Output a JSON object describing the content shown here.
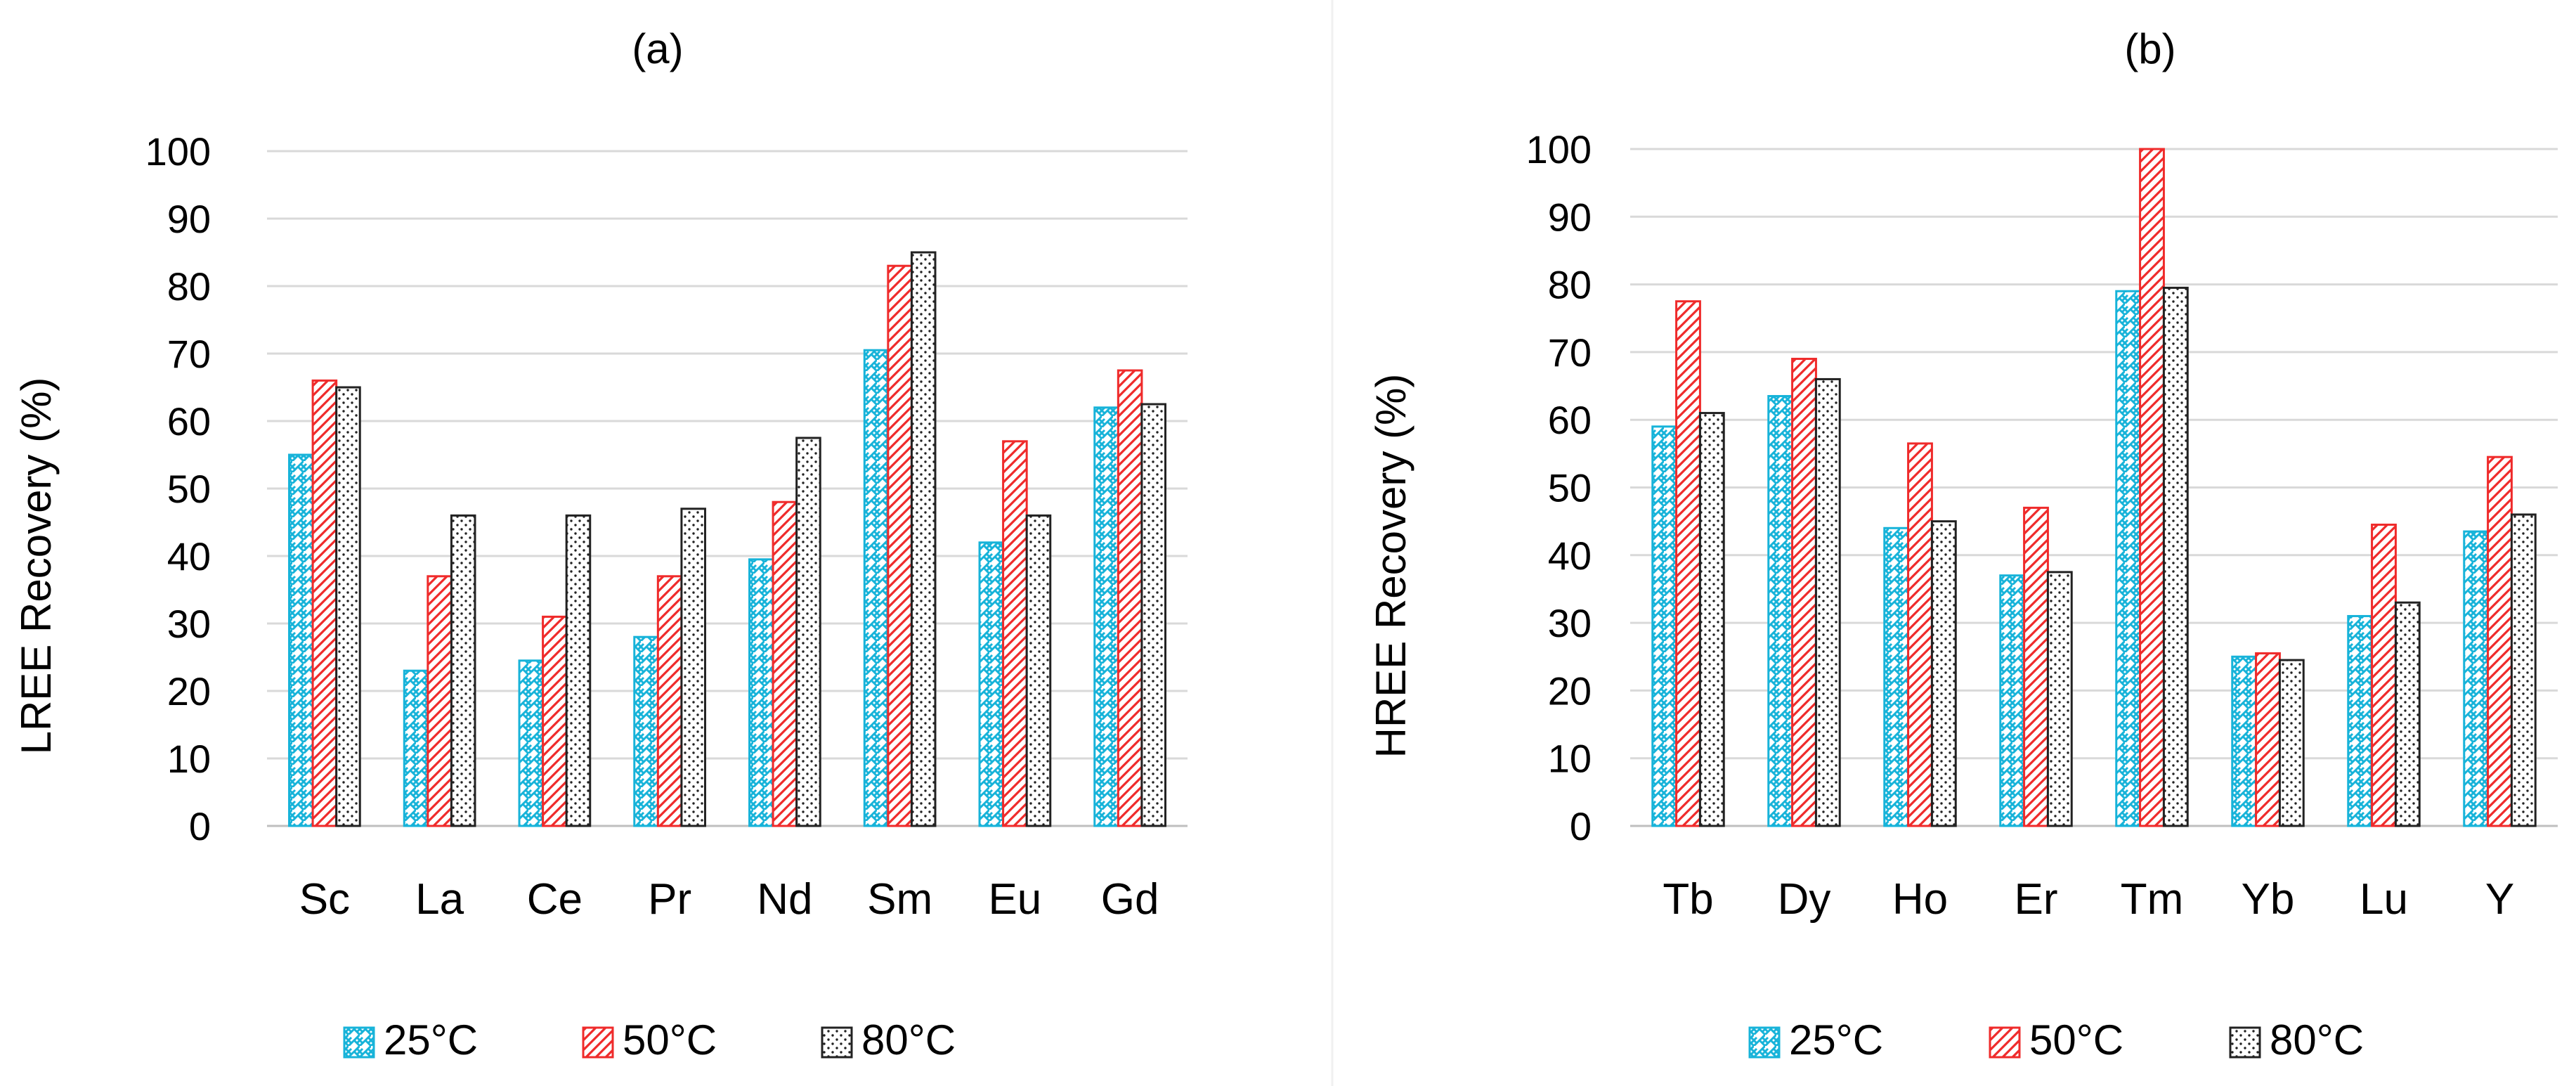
{
  "colors": {
    "series_25": "#17b3d9",
    "series_50": "#ef2b2b",
    "series_80": "#222222",
    "grid": "#d9d9d9",
    "axis": "#bfbfbf",
    "divider": "#f0f0f0"
  },
  "chart_data": [
    {
      "type": "bar",
      "title": "(a)",
      "xlabel": "",
      "ylabel": "LREE Recovery (%)",
      "ylim": [
        0,
        100
      ],
      "yticks": [
        "0",
        "10",
        "20",
        "30",
        "40",
        "50",
        "60",
        "70",
        "80",
        "90",
        "100"
      ],
      "grid": true,
      "legend_position": "bottom",
      "categories": [
        "Sc",
        "La",
        "Ce",
        "Pr",
        "Nd",
        "Sm",
        "Eu",
        "Gd"
      ],
      "series": [
        {
          "name": "25°C",
          "pattern": "brick",
          "values": [
            55,
            23,
            24.5,
            28,
            39.5,
            70.5,
            42,
            62
          ]
        },
        {
          "name": "50°C",
          "pattern": "diagonal",
          "values": [
            66,
            37,
            31,
            37,
            48,
            83,
            57,
            67.5
          ]
        },
        {
          "name": "80°C",
          "pattern": "dots",
          "values": [
            65,
            46,
            46,
            47,
            57.5,
            85,
            46,
            62.5
          ]
        }
      ]
    },
    {
      "type": "bar",
      "title": "(b)",
      "xlabel": "",
      "ylabel": "HREE Recovery (%)",
      "ylim": [
        0,
        100
      ],
      "yticks": [
        "0",
        "10",
        "20",
        "30",
        "40",
        "50",
        "60",
        "70",
        "80",
        "90",
        "100"
      ],
      "grid": true,
      "legend_position": "bottom",
      "categories": [
        "Tb",
        "Dy",
        "Ho",
        "Er",
        "Tm",
        "Yb",
        "Lu",
        "Y"
      ],
      "series": [
        {
          "name": "25°C",
          "pattern": "brick",
          "values": [
            59,
            63.5,
            44,
            37,
            79,
            25,
            31,
            43.5
          ]
        },
        {
          "name": "50°C",
          "pattern": "diagonal",
          "values": [
            77.5,
            69,
            56.5,
            47,
            100,
            25.5,
            44.5,
            54.5
          ]
        },
        {
          "name": "80°C",
          "pattern": "dots",
          "values": [
            61,
            66,
            45,
            37.5,
            79.5,
            24.5,
            33,
            46
          ]
        }
      ]
    }
  ]
}
